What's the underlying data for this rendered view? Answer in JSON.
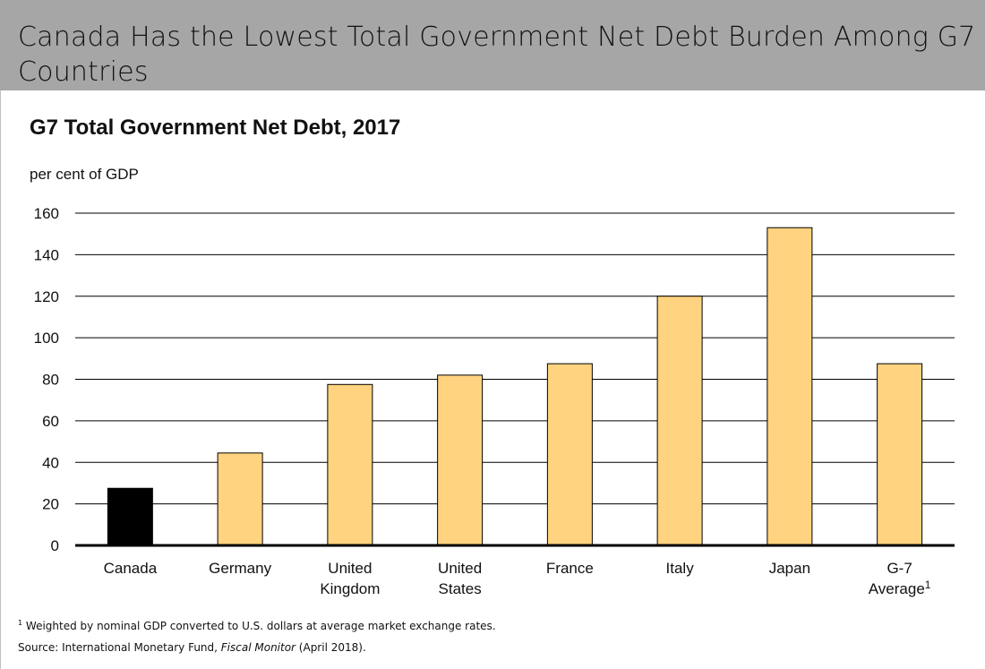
{
  "header": {
    "title": "Canada Has the Lowest Total Government Net Debt Burden Among G7 Countries"
  },
  "chart_title": "G7 Total Government Net Debt, 2017",
  "y_unit_label": "per cent of GDP",
  "footnote": {
    "marker": "1",
    "text": "Weighted by nominal GDP converted to U.S. dollars at average market exchange rates."
  },
  "source": {
    "prefix": "Source: International Monetary Fund, ",
    "publication": "Fiscal Monitor",
    "suffix": " (April 2018)."
  },
  "colors": {
    "highlight": "#000000",
    "bar": "#ffd37f",
    "bar_stroke": "#000000",
    "header_bg": "#a6a6a6"
  },
  "chart_data": {
    "type": "bar",
    "title": "G7 Total Government Net Debt, 2017",
    "ylabel": "per cent of GDP",
    "xlabel": "",
    "ylim": [
      0,
      160
    ],
    "yticks": [
      0,
      20,
      40,
      60,
      80,
      100,
      120,
      140,
      160
    ],
    "grid": true,
    "categories": [
      [
        "Canada"
      ],
      [
        "Germany"
      ],
      [
        "United",
        "Kingdom"
      ],
      [
        "United",
        "States"
      ],
      [
        "France"
      ],
      [
        "Italy"
      ],
      [
        "Japan"
      ],
      [
        "G-7",
        "Average"
      ]
    ],
    "category_superscripts": [
      "",
      "",
      "",
      "",
      "",
      "",
      "",
      "1"
    ],
    "values": [
      27.5,
      44.5,
      77.5,
      82,
      87.5,
      120,
      153,
      87.5
    ],
    "highlight_index": 0
  }
}
